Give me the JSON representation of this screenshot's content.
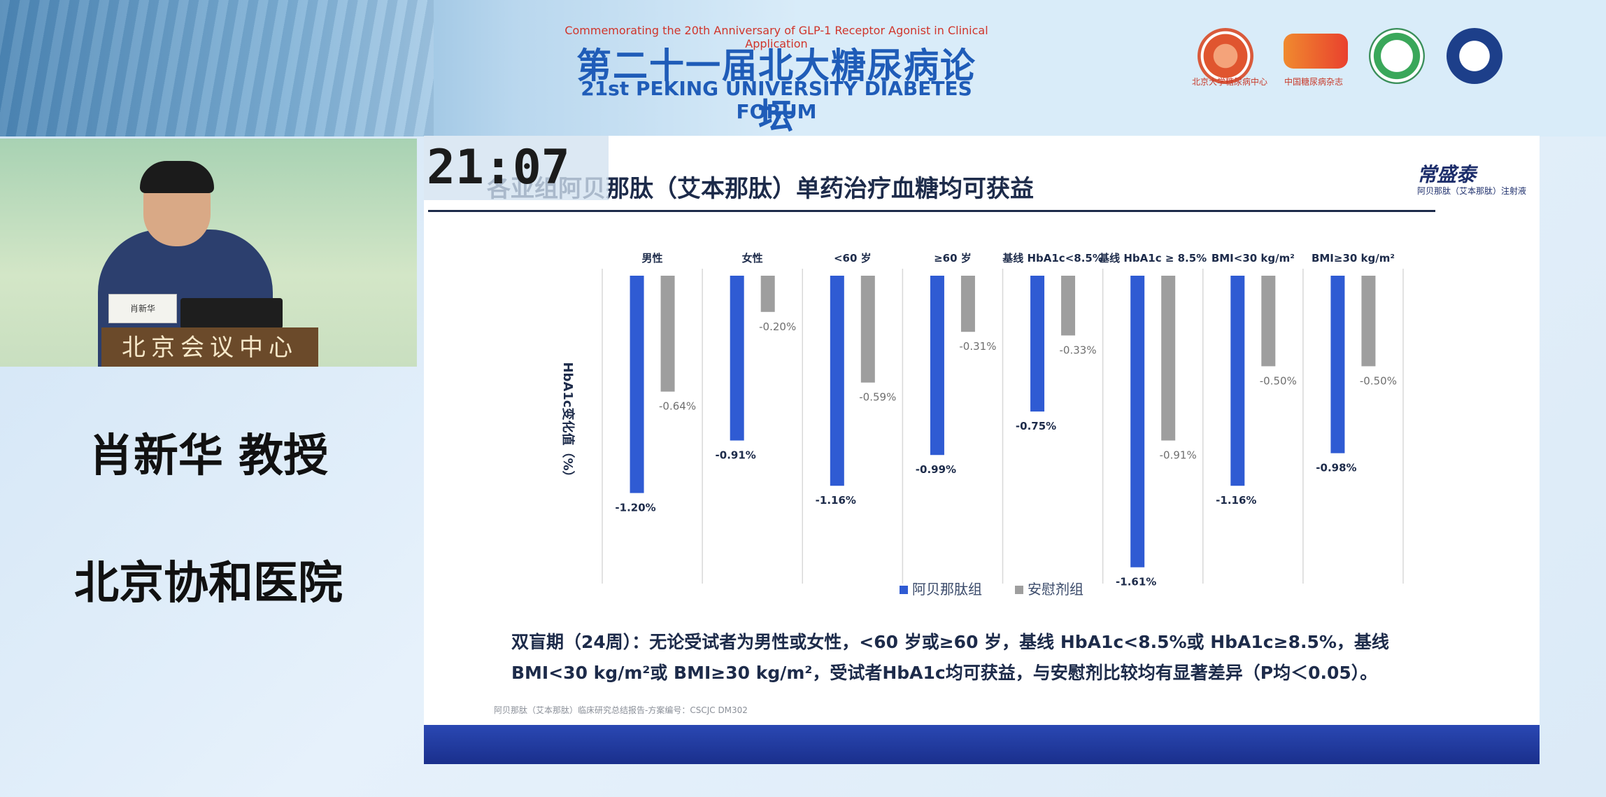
{
  "header": {
    "subtitle": "Commemorating the 20th Anniversary of GLP-1 Receptor Agonist in Clinical Application",
    "title_cn": "第二十一届北大糖尿病论坛",
    "title_en": "21st PEKING UNIVERSITY DIABETES FORUM",
    "logos": [
      {
        "icon": "peking-university-logo-icon",
        "caption": "北京大学糖尿病中心"
      },
      {
        "icon": "cd-logo-icon",
        "caption": "中国糖尿病杂志"
      },
      {
        "icon": "green-seal-logo-icon",
        "caption": ""
      },
      {
        "icon": "blue-seal-logo-icon",
        "caption": ""
      }
    ]
  },
  "speaker": {
    "podium_text": "北京会议中心",
    "nameplate": "肖新华",
    "name": "肖新华 教授",
    "organization": "北京协和医院"
  },
  "slide": {
    "timer": "21:07",
    "title": "各亚组阿贝那肽（艾本那肽）单药治疗血糖均可获益",
    "brand": "常盛泰",
    "brand_sub": "阿贝那肽（艾本那肽）注射液",
    "caption_line1": "双盲期（24周）：无论受试者为男性或女性，<60 岁或≥60 岁，基线 HbA1c<8.5%或 HbA1c≥8.5%，基线",
    "caption_line2": "BMI<30 kg/m²或 BMI≥30 kg/m²，受试者HbA1c均可获益，与安慰剂比较均有显著差异（P均＜0.05）。",
    "footnote": "阿贝那肽（艾本那肽）临床研究总结报告-方案编号：CSCJC DM302"
  },
  "chart_data": {
    "type": "bar",
    "title": "",
    "xlabel": "",
    "ylabel": "HbA1c变化值（%）",
    "categories": [
      "男性",
      "女性",
      "<60 岁",
      "≥60 岁",
      "基线 HbA1c<8.5%",
      "基线 HbA1c ≥ 8.5%",
      "BMI<30 kg/m²",
      "BMI≥30 kg/m²"
    ],
    "series": [
      {
        "name": "阿贝那肽组",
        "color": "#2f5bd3",
        "values": [
          -1.2,
          -0.91,
          -1.16,
          -0.99,
          -0.75,
          -1.61,
          -1.16,
          -0.98
        ],
        "labels": [
          "-1.20%",
          "-0.91%",
          "-1.16%",
          "-0.99%",
          "-0.75%",
          "-1.61%",
          "-1.16%",
          "-0.98%"
        ]
      },
      {
        "name": "安慰剂组",
        "color": "#9e9e9e",
        "values": [
          -0.64,
          -0.2,
          -0.59,
          -0.31,
          -0.33,
          -0.91,
          -0.5,
          -0.5
        ],
        "labels": [
          "-0.64%",
          "-0.20%",
          "-0.59%",
          "-0.31%",
          "-0.33%",
          "-0.91%",
          "-0.50%",
          "-0.50%"
        ]
      }
    ],
    "ylim": [
      -1.7,
      0
    ],
    "grid": true,
    "legend": "bottom"
  }
}
